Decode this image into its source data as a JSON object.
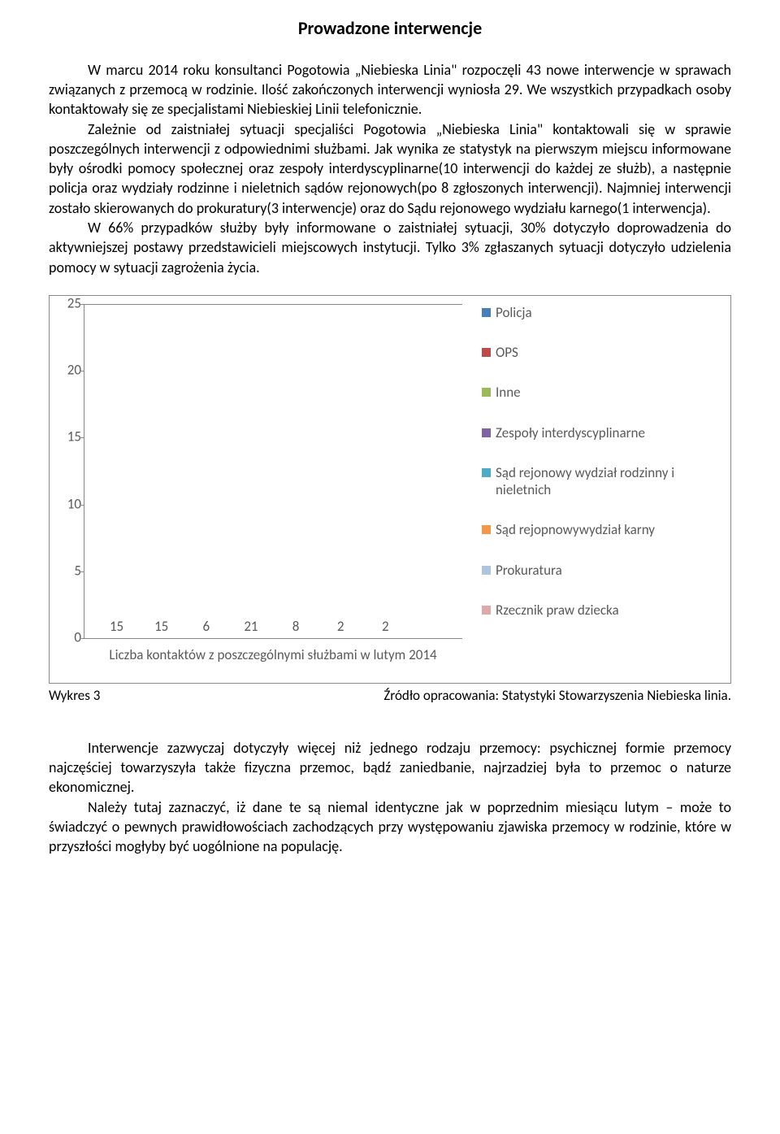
{
  "title": "Prowadzone interwencje",
  "para1": "W marcu 2014 roku konsultanci Pogotowia „Niebieska Linia\" rozpoczęli 43 nowe interwencje w sprawach związanych z przemocą w rodzinie. Ilość zakończonych interwencji wyniosła 29. We wszystkich przypadkach osoby kontaktowały się ze specjalistami Niebieskiej Linii telefonicznie.",
  "para2": "Zależnie od zaistniałej sytuacji specjaliści Pogotowia „Niebieska Linia\" kontaktowali się w sprawie poszczególnych interwencji z odpowiednimi służbami. Jak wynika ze statystyk na pierwszym miejscu informowane były ośrodki pomocy społecznej oraz zespoły interdyscyplinarne(10 interwencji do każdej ze służb), a następnie policja oraz wydziały rodzinne i nieletnich sądów rejonowych(po 8 zgłoszonych interwencji). Najmniej interwencji zostało skierowanych do prokuratury(3 interwencje) oraz do Sądu rejonowego wydziału karnego(1 interwencja).",
  "para3": "W 66% przypadków służby były informowane o zaistniałej sytuacji, 30% dotyczyło doprowadzenia do aktywniejszej postawy przedstawicieli miejscowych instytucji. Tylko 3% zgłaszanych sytuacji dotyczyło udzielenia pomocy w sytuacji zagrożenia życia.",
  "chart": {
    "ymax": 25,
    "ytick_step": 5,
    "yticks": [
      "0",
      "5",
      "10",
      "15",
      "20",
      "25"
    ],
    "xlabel": "Liczba kontaktów z poszczególnymi służbami w lutym 2014",
    "bars": [
      {
        "value": 15,
        "color": "#4a7ebb",
        "label": "Policja"
      },
      {
        "value": 15,
        "color": "#be4b48",
        "label": "OPS"
      },
      {
        "value": 6,
        "color": "#9abb58",
        "label": "Inne"
      },
      {
        "value": 21,
        "color": "#8064a2",
        "label": "Zespoły interdyscyplinarne"
      },
      {
        "value": 8,
        "color": "#4bacc6",
        "label": "Sąd rejonowy wydział rodzinny i nieletnich"
      },
      {
        "value": 2,
        "color": "#f79646",
        "label": "Sąd rejopnowywydział karny"
      },
      {
        "value": 2,
        "color": "#aec5e2",
        "label": "Prokuratura"
      },
      {
        "value": 0,
        "color": "#dfa9a8",
        "label": "Rzecznik praw dziecka"
      }
    ]
  },
  "caption_left": "Wykres 3",
  "caption_right": "Źródło opracowania: Statystyki Stowarzyszenia Niebieska linia.",
  "footer1": "Interwencje zazwyczaj dotyczyły więcej niż jednego rodzaju przemocy: psychicznej formie przemocy najczęściej towarzyszyła także fizyczna przemoc, bądź zaniedbanie, najrzadziej była to przemoc o naturze ekonomicznej.",
  "footer2": "Należy tutaj zaznaczyć, iż dane te są niemal identyczne jak w poprzednim miesiącu lutym – może to świadczyć o pewnych prawidłowościach zachodzących przy występowaniu zjawiska przemocy w rodzinie, które w przyszłości mogłyby być uogólnione na populację."
}
